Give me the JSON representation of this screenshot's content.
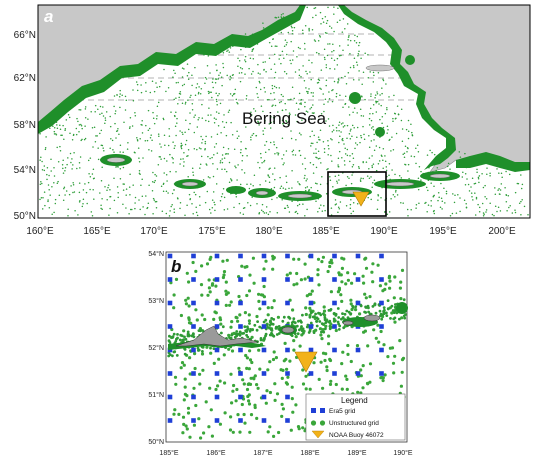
{
  "panel_a": {
    "label": "a",
    "sea_label": "Bering Sea",
    "lat_ticks": [
      "66°N",
      "62°N",
      "58°N",
      "54°N",
      "50°N"
    ],
    "lon_ticks": [
      "160°E",
      "165°E",
      "170°E",
      "175°E",
      "180°E",
      "185°E",
      "190°E",
      "195°E",
      "200°E"
    ]
  },
  "panel_b": {
    "label": "b",
    "lat_ticks": [
      "54°N",
      "53°N",
      "52°N",
      "51°N",
      "50°N"
    ],
    "lon_ticks": [
      "185°E",
      "186°E",
      "187°E",
      "188°E",
      "189°E",
      "190°E"
    ]
  },
  "legend": {
    "title": "Legend",
    "items": [
      {
        "label": "Era5 grid",
        "symbol": "blue-square",
        "color": "#1f3fd6"
      },
      {
        "label": "Unstructured grid",
        "symbol": "green-circle",
        "color": "#3aa63a"
      },
      {
        "label": "NOAA Buoy 46072",
        "symbol": "yellow-triangle",
        "color": "#f2b21a"
      }
    ]
  },
  "colors": {
    "land": "#c8c8c8",
    "mesh_dot": "#2f9e3a",
    "dense_coast": "#1f8f2a",
    "era5": "#1f3fd6",
    "buoy": "#f2b21a"
  }
}
